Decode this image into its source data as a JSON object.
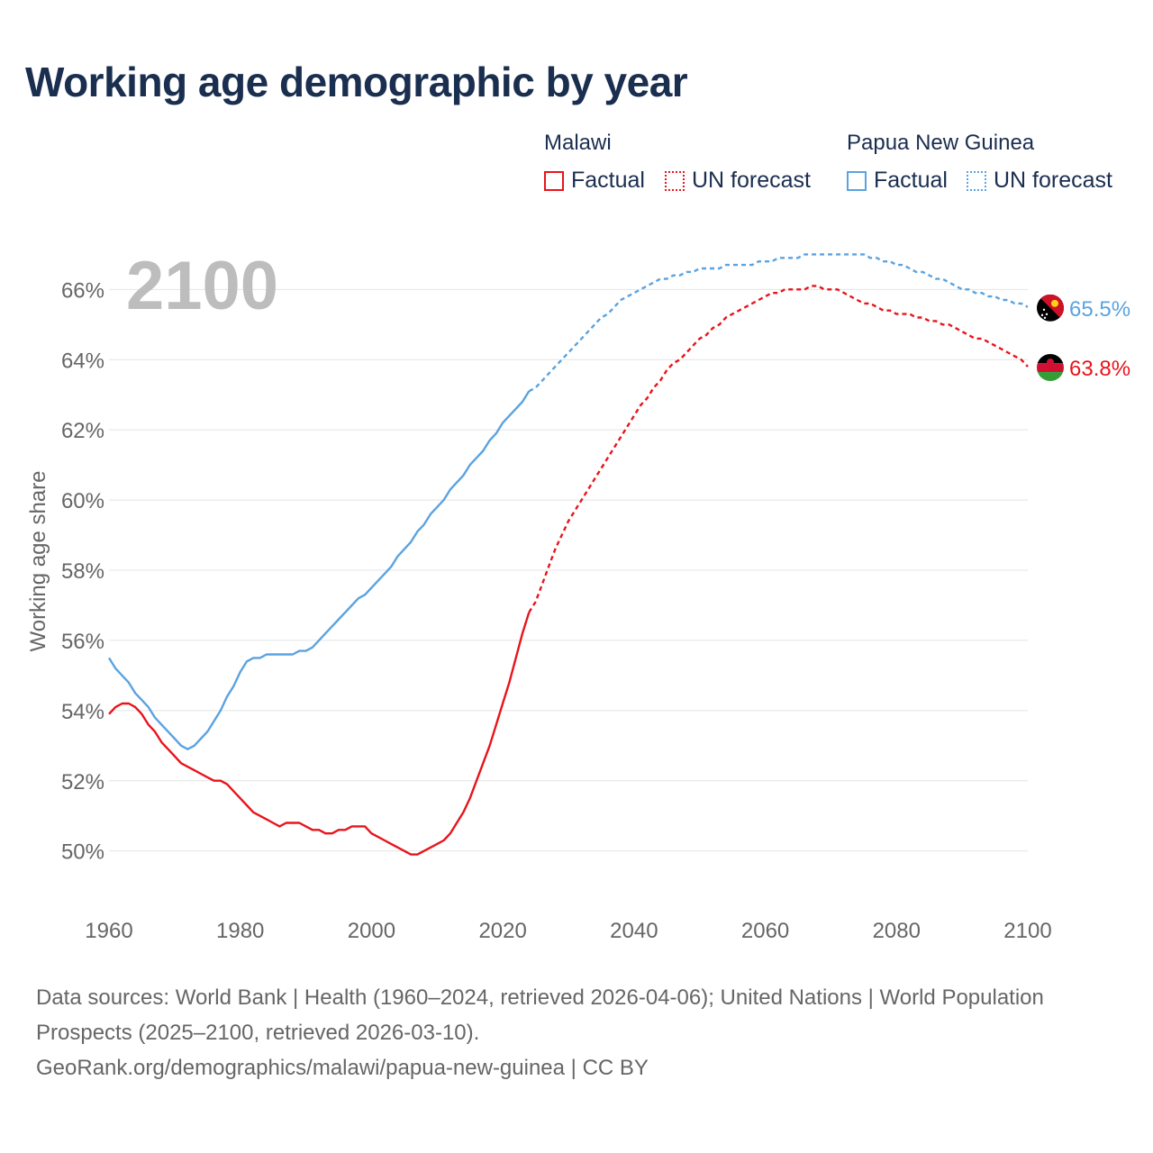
{
  "title": "Working age demographic by year",
  "colors": {
    "malawi": "#e8141b",
    "png": "#5aa3e0",
    "grid": "#e4e4e4",
    "axis_text": "#666666",
    "year_watermark": "#bdbdbd",
    "title": "#1a2e4f"
  },
  "legend": {
    "groups": [
      {
        "country": "Malawi",
        "factual_label": "Factual",
        "forecast_label": "UN forecast"
      },
      {
        "country": "Papua New Guinea",
        "factual_label": "Factual",
        "forecast_label": "UN forecast"
      }
    ]
  },
  "year_watermark": "2100",
  "chart_data": {
    "type": "line",
    "title": "Working age demographic by year",
    "ylabel": "Working age share",
    "xlabel": "",
    "xlim": [
      1960,
      2100
    ],
    "ylim": [
      48.4,
      67.6
    ],
    "x_ticks": [
      1960,
      1980,
      2000,
      2020,
      2040,
      2060,
      2080,
      2100
    ],
    "y_ticks": [
      50,
      52,
      54,
      56,
      58,
      60,
      62,
      64,
      66
    ],
    "y_tick_suffix": "%",
    "forecast_start_year": 2024,
    "series": [
      {
        "name": "Malawi",
        "color": "#e8141b",
        "end_label": "63.8%",
        "points": [
          [
            1960,
            53.9
          ],
          [
            1961,
            54.1
          ],
          [
            1962,
            54.2
          ],
          [
            1963,
            54.2
          ],
          [
            1964,
            54.1
          ],
          [
            1965,
            53.9
          ],
          [
            1966,
            53.6
          ],
          [
            1967,
            53.4
          ],
          [
            1968,
            53.1
          ],
          [
            1969,
            52.9
          ],
          [
            1970,
            52.7
          ],
          [
            1971,
            52.5
          ],
          [
            1972,
            52.4
          ],
          [
            1973,
            52.3
          ],
          [
            1974,
            52.2
          ],
          [
            1975,
            52.1
          ],
          [
            1976,
            52.0
          ],
          [
            1977,
            52.0
          ],
          [
            1978,
            51.9
          ],
          [
            1979,
            51.7
          ],
          [
            1980,
            51.5
          ],
          [
            1981,
            51.3
          ],
          [
            1982,
            51.1
          ],
          [
            1983,
            51.0
          ],
          [
            1984,
            50.9
          ],
          [
            1985,
            50.8
          ],
          [
            1986,
            50.7
          ],
          [
            1987,
            50.8
          ],
          [
            1988,
            50.8
          ],
          [
            1989,
            50.8
          ],
          [
            1990,
            50.7
          ],
          [
            1991,
            50.6
          ],
          [
            1992,
            50.6
          ],
          [
            1993,
            50.5
          ],
          [
            1994,
            50.5
          ],
          [
            1995,
            50.6
          ],
          [
            1996,
            50.6
          ],
          [
            1997,
            50.7
          ],
          [
            1998,
            50.7
          ],
          [
            1999,
            50.7
          ],
          [
            2000,
            50.5
          ],
          [
            2001,
            50.4
          ],
          [
            2002,
            50.3
          ],
          [
            2003,
            50.2
          ],
          [
            2004,
            50.1
          ],
          [
            2005,
            50.0
          ],
          [
            2006,
            49.9
          ],
          [
            2007,
            49.9
          ],
          [
            2008,
            50.0
          ],
          [
            2009,
            50.1
          ],
          [
            2010,
            50.2
          ],
          [
            2011,
            50.3
          ],
          [
            2012,
            50.5
          ],
          [
            2013,
            50.8
          ],
          [
            2014,
            51.1
          ],
          [
            2015,
            51.5
          ],
          [
            2016,
            52.0
          ],
          [
            2017,
            52.5
          ],
          [
            2018,
            53.0
          ],
          [
            2019,
            53.6
          ],
          [
            2020,
            54.2
          ],
          [
            2021,
            54.8
          ],
          [
            2022,
            55.5
          ],
          [
            2023,
            56.2
          ],
          [
            2024,
            56.8
          ],
          [
            2025,
            57.1
          ],
          [
            2026,
            57.6
          ],
          [
            2027,
            58.1
          ],
          [
            2028,
            58.6
          ],
          [
            2029,
            59.0
          ],
          [
            2030,
            59.4
          ],
          [
            2031,
            59.7
          ],
          [
            2032,
            60.0
          ],
          [
            2033,
            60.3
          ],
          [
            2034,
            60.6
          ],
          [
            2035,
            60.9
          ],
          [
            2036,
            61.2
          ],
          [
            2037,
            61.5
          ],
          [
            2038,
            61.8
          ],
          [
            2039,
            62.1
          ],
          [
            2040,
            62.4
          ],
          [
            2041,
            62.7
          ],
          [
            2042,
            62.9
          ],
          [
            2043,
            63.2
          ],
          [
            2044,
            63.4
          ],
          [
            2045,
            63.7
          ],
          [
            2046,
            63.9
          ],
          [
            2047,
            64.0
          ],
          [
            2048,
            64.2
          ],
          [
            2049,
            64.4
          ],
          [
            2050,
            64.6
          ],
          [
            2051,
            64.7
          ],
          [
            2052,
            64.9
          ],
          [
            2053,
            65.0
          ],
          [
            2054,
            65.2
          ],
          [
            2055,
            65.3
          ],
          [
            2056,
            65.4
          ],
          [
            2057,
            65.5
          ],
          [
            2058,
            65.6
          ],
          [
            2059,
            65.7
          ],
          [
            2060,
            65.8
          ],
          [
            2061,
            65.9
          ],
          [
            2062,
            65.9
          ],
          [
            2063,
            66.0
          ],
          [
            2064,
            66.0
          ],
          [
            2065,
            66.0
          ],
          [
            2066,
            66.0
          ],
          [
            2067,
            66.1
          ],
          [
            2068,
            66.1
          ],
          [
            2069,
            66.0
          ],
          [
            2070,
            66.0
          ],
          [
            2071,
            66.0
          ],
          [
            2072,
            65.9
          ],
          [
            2073,
            65.8
          ],
          [
            2074,
            65.7
          ],
          [
            2075,
            65.6
          ],
          [
            2076,
            65.6
          ],
          [
            2077,
            65.5
          ],
          [
            2078,
            65.4
          ],
          [
            2079,
            65.4
          ],
          [
            2080,
            65.3
          ],
          [
            2081,
            65.3
          ],
          [
            2082,
            65.3
          ],
          [
            2083,
            65.2
          ],
          [
            2084,
            65.2
          ],
          [
            2085,
            65.1
          ],
          [
            2086,
            65.1
          ],
          [
            2087,
            65.0
          ],
          [
            2088,
            65.0
          ],
          [
            2089,
            64.9
          ],
          [
            2090,
            64.8
          ],
          [
            2091,
            64.7
          ],
          [
            2092,
            64.6
          ],
          [
            2093,
            64.6
          ],
          [
            2094,
            64.5
          ],
          [
            2095,
            64.4
          ],
          [
            2096,
            64.3
          ],
          [
            2097,
            64.2
          ],
          [
            2098,
            64.1
          ],
          [
            2099,
            64.0
          ],
          [
            2100,
            63.8
          ]
        ]
      },
      {
        "name": "Papua New Guinea",
        "color": "#5aa3e0",
        "end_label": "65.5%",
        "points": [
          [
            1960,
            55.5
          ],
          [
            1961,
            55.2
          ],
          [
            1962,
            55.0
          ],
          [
            1963,
            54.8
          ],
          [
            1964,
            54.5
          ],
          [
            1965,
            54.3
          ],
          [
            1966,
            54.1
          ],
          [
            1967,
            53.8
          ],
          [
            1968,
            53.6
          ],
          [
            1969,
            53.4
          ],
          [
            1970,
            53.2
          ],
          [
            1971,
            53.0
          ],
          [
            1972,
            52.9
          ],
          [
            1973,
            53.0
          ],
          [
            1974,
            53.2
          ],
          [
            1975,
            53.4
          ],
          [
            1976,
            53.7
          ],
          [
            1977,
            54.0
          ],
          [
            1978,
            54.4
          ],
          [
            1979,
            54.7
          ],
          [
            1980,
            55.1
          ],
          [
            1981,
            55.4
          ],
          [
            1982,
            55.5
          ],
          [
            1983,
            55.5
          ],
          [
            1984,
            55.6
          ],
          [
            1985,
            55.6
          ],
          [
            1986,
            55.6
          ],
          [
            1987,
            55.6
          ],
          [
            1988,
            55.6
          ],
          [
            1989,
            55.7
          ],
          [
            1990,
            55.7
          ],
          [
            1991,
            55.8
          ],
          [
            1992,
            56.0
          ],
          [
            1993,
            56.2
          ],
          [
            1994,
            56.4
          ],
          [
            1995,
            56.6
          ],
          [
            1996,
            56.8
          ],
          [
            1997,
            57.0
          ],
          [
            1998,
            57.2
          ],
          [
            1999,
            57.3
          ],
          [
            2000,
            57.5
          ],
          [
            2001,
            57.7
          ],
          [
            2002,
            57.9
          ],
          [
            2003,
            58.1
          ],
          [
            2004,
            58.4
          ],
          [
            2005,
            58.6
          ],
          [
            2006,
            58.8
          ],
          [
            2007,
            59.1
          ],
          [
            2008,
            59.3
          ],
          [
            2009,
            59.6
          ],
          [
            2010,
            59.8
          ],
          [
            2011,
            60.0
          ],
          [
            2012,
            60.3
          ],
          [
            2013,
            60.5
          ],
          [
            2014,
            60.7
          ],
          [
            2015,
            61.0
          ],
          [
            2016,
            61.2
          ],
          [
            2017,
            61.4
          ],
          [
            2018,
            61.7
          ],
          [
            2019,
            61.9
          ],
          [
            2020,
            62.2
          ],
          [
            2021,
            62.4
          ],
          [
            2022,
            62.6
          ],
          [
            2023,
            62.8
          ],
          [
            2024,
            63.1
          ],
          [
            2025,
            63.2
          ],
          [
            2026,
            63.4
          ],
          [
            2027,
            63.6
          ],
          [
            2028,
            63.8
          ],
          [
            2029,
            64.0
          ],
          [
            2030,
            64.2
          ],
          [
            2031,
            64.4
          ],
          [
            2032,
            64.6
          ],
          [
            2033,
            64.8
          ],
          [
            2034,
            65.0
          ],
          [
            2035,
            65.2
          ],
          [
            2036,
            65.3
          ],
          [
            2037,
            65.5
          ],
          [
            2038,
            65.7
          ],
          [
            2039,
            65.8
          ],
          [
            2040,
            65.9
          ],
          [
            2041,
            66.0
          ],
          [
            2042,
            66.1
          ],
          [
            2043,
            66.2
          ],
          [
            2044,
            66.3
          ],
          [
            2045,
            66.3
          ],
          [
            2046,
            66.4
          ],
          [
            2047,
            66.4
          ],
          [
            2048,
            66.5
          ],
          [
            2049,
            66.5
          ],
          [
            2050,
            66.6
          ],
          [
            2051,
            66.6
          ],
          [
            2052,
            66.6
          ],
          [
            2053,
            66.6
          ],
          [
            2054,
            66.7
          ],
          [
            2055,
            66.7
          ],
          [
            2056,
            66.7
          ],
          [
            2057,
            66.7
          ],
          [
            2058,
            66.7
          ],
          [
            2059,
            66.8
          ],
          [
            2060,
            66.8
          ],
          [
            2061,
            66.8
          ],
          [
            2062,
            66.9
          ],
          [
            2063,
            66.9
          ],
          [
            2064,
            66.9
          ],
          [
            2065,
            66.9
          ],
          [
            2066,
            67.0
          ],
          [
            2067,
            67.0
          ],
          [
            2068,
            67.0
          ],
          [
            2069,
            67.0
          ],
          [
            2070,
            67.0
          ],
          [
            2071,
            67.0
          ],
          [
            2072,
            67.0
          ],
          [
            2073,
            67.0
          ],
          [
            2074,
            67.0
          ],
          [
            2075,
            67.0
          ],
          [
            2076,
            66.9
          ],
          [
            2077,
            66.9
          ],
          [
            2078,
            66.8
          ],
          [
            2079,
            66.8
          ],
          [
            2080,
            66.7
          ],
          [
            2081,
            66.7
          ],
          [
            2082,
            66.6
          ],
          [
            2083,
            66.5
          ],
          [
            2084,
            66.5
          ],
          [
            2085,
            66.4
          ],
          [
            2086,
            66.3
          ],
          [
            2087,
            66.3
          ],
          [
            2088,
            66.2
          ],
          [
            2089,
            66.1
          ],
          [
            2090,
            66.0
          ],
          [
            2091,
            66.0
          ],
          [
            2092,
            65.9
          ],
          [
            2093,
            65.9
          ],
          [
            2094,
            65.8
          ],
          [
            2095,
            65.8
          ],
          [
            2096,
            65.7
          ],
          [
            2097,
            65.7
          ],
          [
            2098,
            65.6
          ],
          [
            2099,
            65.6
          ],
          [
            2100,
            65.5
          ]
        ]
      }
    ]
  },
  "sources": {
    "line1": "Data sources: World Bank | Health (1960–2024, retrieved 2026-04-06); United Nations | World Population Prospects (2025–2100, retrieved 2026-03-10).",
    "line2": "GeoRank.org/demographics/malawi/papua-new-guinea | CC BY"
  }
}
